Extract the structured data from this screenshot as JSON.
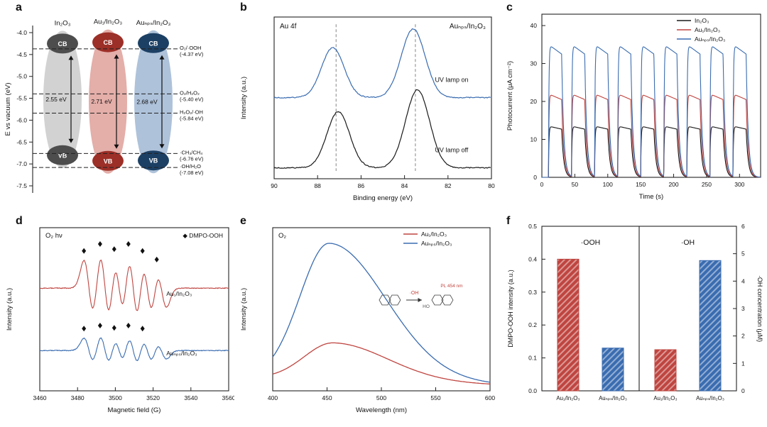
{
  "panel_labels": {
    "a": "a",
    "b": "b",
    "c": "c",
    "d": "d",
    "e": "e",
    "f": "f"
  },
  "chart_data": [
    {
      "panel": "a",
      "type": "band-diagram",
      "ylabel": "E vs vacuum (eV)",
      "yticks": [
        "-4.0",
        "-4.5",
        "-5.0",
        "-5.5",
        "-6.0",
        "-6.5",
        "-7.0",
        "-7.5"
      ],
      "cb_text": "CB",
      "vb_text": "VB",
      "materials": [
        {
          "name": "In₂O₃",
          "gap_label": "2.55 eV",
          "cb_ev": -4.25,
          "vb_ev": -6.8,
          "body_color": "#c0c0c0",
          "cap_color": "#4d4d4d"
        },
        {
          "name": "Au₁/In₂O₃",
          "gap_label": "2.71 eV",
          "cb_ev": -4.22,
          "vb_ev": -6.93,
          "body_color": "#d98f88",
          "cap_color": "#9c2f27"
        },
        {
          "name": "Auₙₚₛ/In₂O₃",
          "gap_label": "2.68 eV",
          "cb_ev": -4.24,
          "vb_ev": -6.92,
          "body_color": "#8fabcc",
          "cap_color": "#1c4064"
        }
      ],
      "redox_levels": [
        {
          "label": "O₂/·OOH",
          "ev_label": "(-4.37 eV)",
          "ev": -4.37
        },
        {
          "label": "O₂/H₂O₂",
          "ev_label": "(-5.40 eV)",
          "ev": -5.4
        },
        {
          "label": "H₂O₂/·OH",
          "ev_label": "(-5.84 eV)",
          "ev": -5.84
        },
        {
          "label": "·CH₃/CH₄",
          "ev_label": "(-6.76 eV)",
          "ev": -6.76
        },
        {
          "label": "·OH/H₂O",
          "ev_label": "(-7.08 eV)",
          "ev": -7.08
        }
      ]
    },
    {
      "panel": "b",
      "type": "line",
      "title": "Au 4f",
      "annotation": "Auₙₚₛ/In₂O₃",
      "xlabel": "Binding energy (eV)",
      "ylabel": "Intensity (a.u.)",
      "xticks": [
        90,
        88,
        86,
        84,
        82,
        80
      ],
      "xmin": 80,
      "xmax": 90,
      "x_reversed": true,
      "dashed_guides": [
        87.15,
        83.5
      ],
      "series": [
        {
          "name": "UV lamp off",
          "color": "#1a1a1a",
          "baseline": 0.07,
          "peaks": [
            {
              "center": 87.05,
              "height": 0.36,
              "width": 0.52
            },
            {
              "center": 83.4,
              "height": 0.5,
              "width": 0.55
            }
          ],
          "label_xy": [
            82.6,
            0.17
          ]
        },
        {
          "name": "UV lamp on",
          "color": "#3a6cb0",
          "baseline": 0.52,
          "peaks": [
            {
              "center": 87.3,
              "height": 0.32,
              "width": 0.52
            },
            {
              "center": 83.6,
              "height": 0.44,
              "width": 0.55
            }
          ],
          "label_xy": [
            82.6,
            0.62
          ]
        }
      ]
    },
    {
      "panel": "c",
      "type": "line",
      "xlabel": "Time (s)",
      "ylabel": "Photocurrent (μA cm⁻²)",
      "xticks": [
        0,
        50,
        100,
        150,
        200,
        250,
        300
      ],
      "yticks": [
        0,
        10,
        20,
        30,
        40
      ],
      "xmin": 0,
      "xmax": 332,
      "ymin": 0,
      "ymax": 43,
      "light_pulses": {
        "first_on_s": 10,
        "on_s": 20,
        "period_s": 35,
        "count": 9
      },
      "series": [
        {
          "name": "In₂O₃",
          "color": "#1a1a1a",
          "plateau_uA": 13.5,
          "droop_uA": 0.8
        },
        {
          "name": "Au₁/In₂O₃",
          "color": "#bf4540",
          "plateau_uA": 22,
          "droop_uA": 1.5
        },
        {
          "name": "Auₙₚₛ/In₂O₃",
          "color": "#3a6cb0",
          "plateau_uA": 35,
          "droop_uA": 2.5
        }
      ]
    },
    {
      "panel": "d",
      "type": "line",
      "title": "O₂ hν",
      "legend_marker": "◆",
      "legend_label": "DMPO-OOH",
      "xlabel": "Magnetic field (G)",
      "ylabel": "Intensity (a.u.)",
      "xticks": [
        3460,
        3480,
        3500,
        3520,
        3540,
        3560
      ],
      "xmin": 3460,
      "xmax": 3560,
      "peak_centers_G": [
        3486,
        3494.5,
        3502,
        3509.5,
        3517,
        3524.5
      ],
      "peak_rel_intensity": [
        0.8,
        1.0,
        0.85,
        1.0,
        0.8,
        0.55
      ],
      "line_width_G": 2.6,
      "series": [
        {
          "name": "Au₁/In₂O₃",
          "color": "#bf4540",
          "baseline": 0.72,
          "amplitude": 0.36,
          "marker_peaks": [
            0,
            1,
            2,
            3,
            4,
            5
          ],
          "label_xy": [
            3527,
            0.64
          ]
        },
        {
          "name": "Auₙₚₛ/In₂O₃",
          "color": "#3a6cb0",
          "baseline": 0.07,
          "amplitude": 0.16,
          "marker_peaks": [
            0,
            1,
            2,
            3,
            4
          ],
          "label_xy": [
            3527,
            0.02
          ]
        }
      ]
    },
    {
      "panel": "e",
      "type": "line",
      "title": "O₂",
      "xlabel": "Wavelength (nm)",
      "ylabel": "Intensity (a.u.)",
      "xticks": [
        400,
        450,
        500,
        550,
        600
      ],
      "xmin": 400,
      "xmax": 600,
      "series": [
        {
          "name": "Au₁/In₂O₃",
          "color": "#bf4540",
          "peak_nm": 456,
          "rel_height": 0.24,
          "width_left_nm": 27,
          "width_right_nm": 50,
          "baseline": 0.08
        },
        {
          "name": "Auₙₚₛ/In₂O₃",
          "color": "#3a6cb0",
          "peak_nm": 452,
          "rel_height": 0.88,
          "width_left_nm": 27,
          "width_right_nm": 52,
          "baseline": 0.08
        }
      ],
      "inset": {
        "radical_label": "·OH",
        "product_note": "PL 454 nm",
        "hydroxyl_label": "HO"
      }
    },
    {
      "panel": "f",
      "type": "bar",
      "subpanels": [
        {
          "title": "·OOH",
          "ylabel": "DMPO-OOH intensity (a.u.)",
          "axis_side": "left",
          "yticks": [
            "0.0",
            "0.1",
            "0.2",
            "0.3",
            "0.4",
            "0.5"
          ],
          "ymax": 0.5,
          "bars": [
            {
              "name": "Au₁/In₂O₃",
              "value": 0.4,
              "color": "#bf4540"
            },
            {
              "name": "Auₙₚₛ/In₂O₃",
              "value": 0.13,
              "color": "#3a6cb0"
            }
          ]
        },
        {
          "title": "·OH",
          "ylabel": "·OH concentration (μM)",
          "axis_side": "right",
          "yticks": [
            "0",
            "1",
            "2",
            "3",
            "4",
            "5",
            "6"
          ],
          "ymax": 6,
          "bars": [
            {
              "name": "Au₁/In₂O₃",
              "value": 1.5,
              "color": "#bf4540"
            },
            {
              "name": "Auₙₚₛ/In₂O₃",
              "value": 4.75,
              "color": "#3a6cb0"
            }
          ]
        }
      ]
    }
  ]
}
